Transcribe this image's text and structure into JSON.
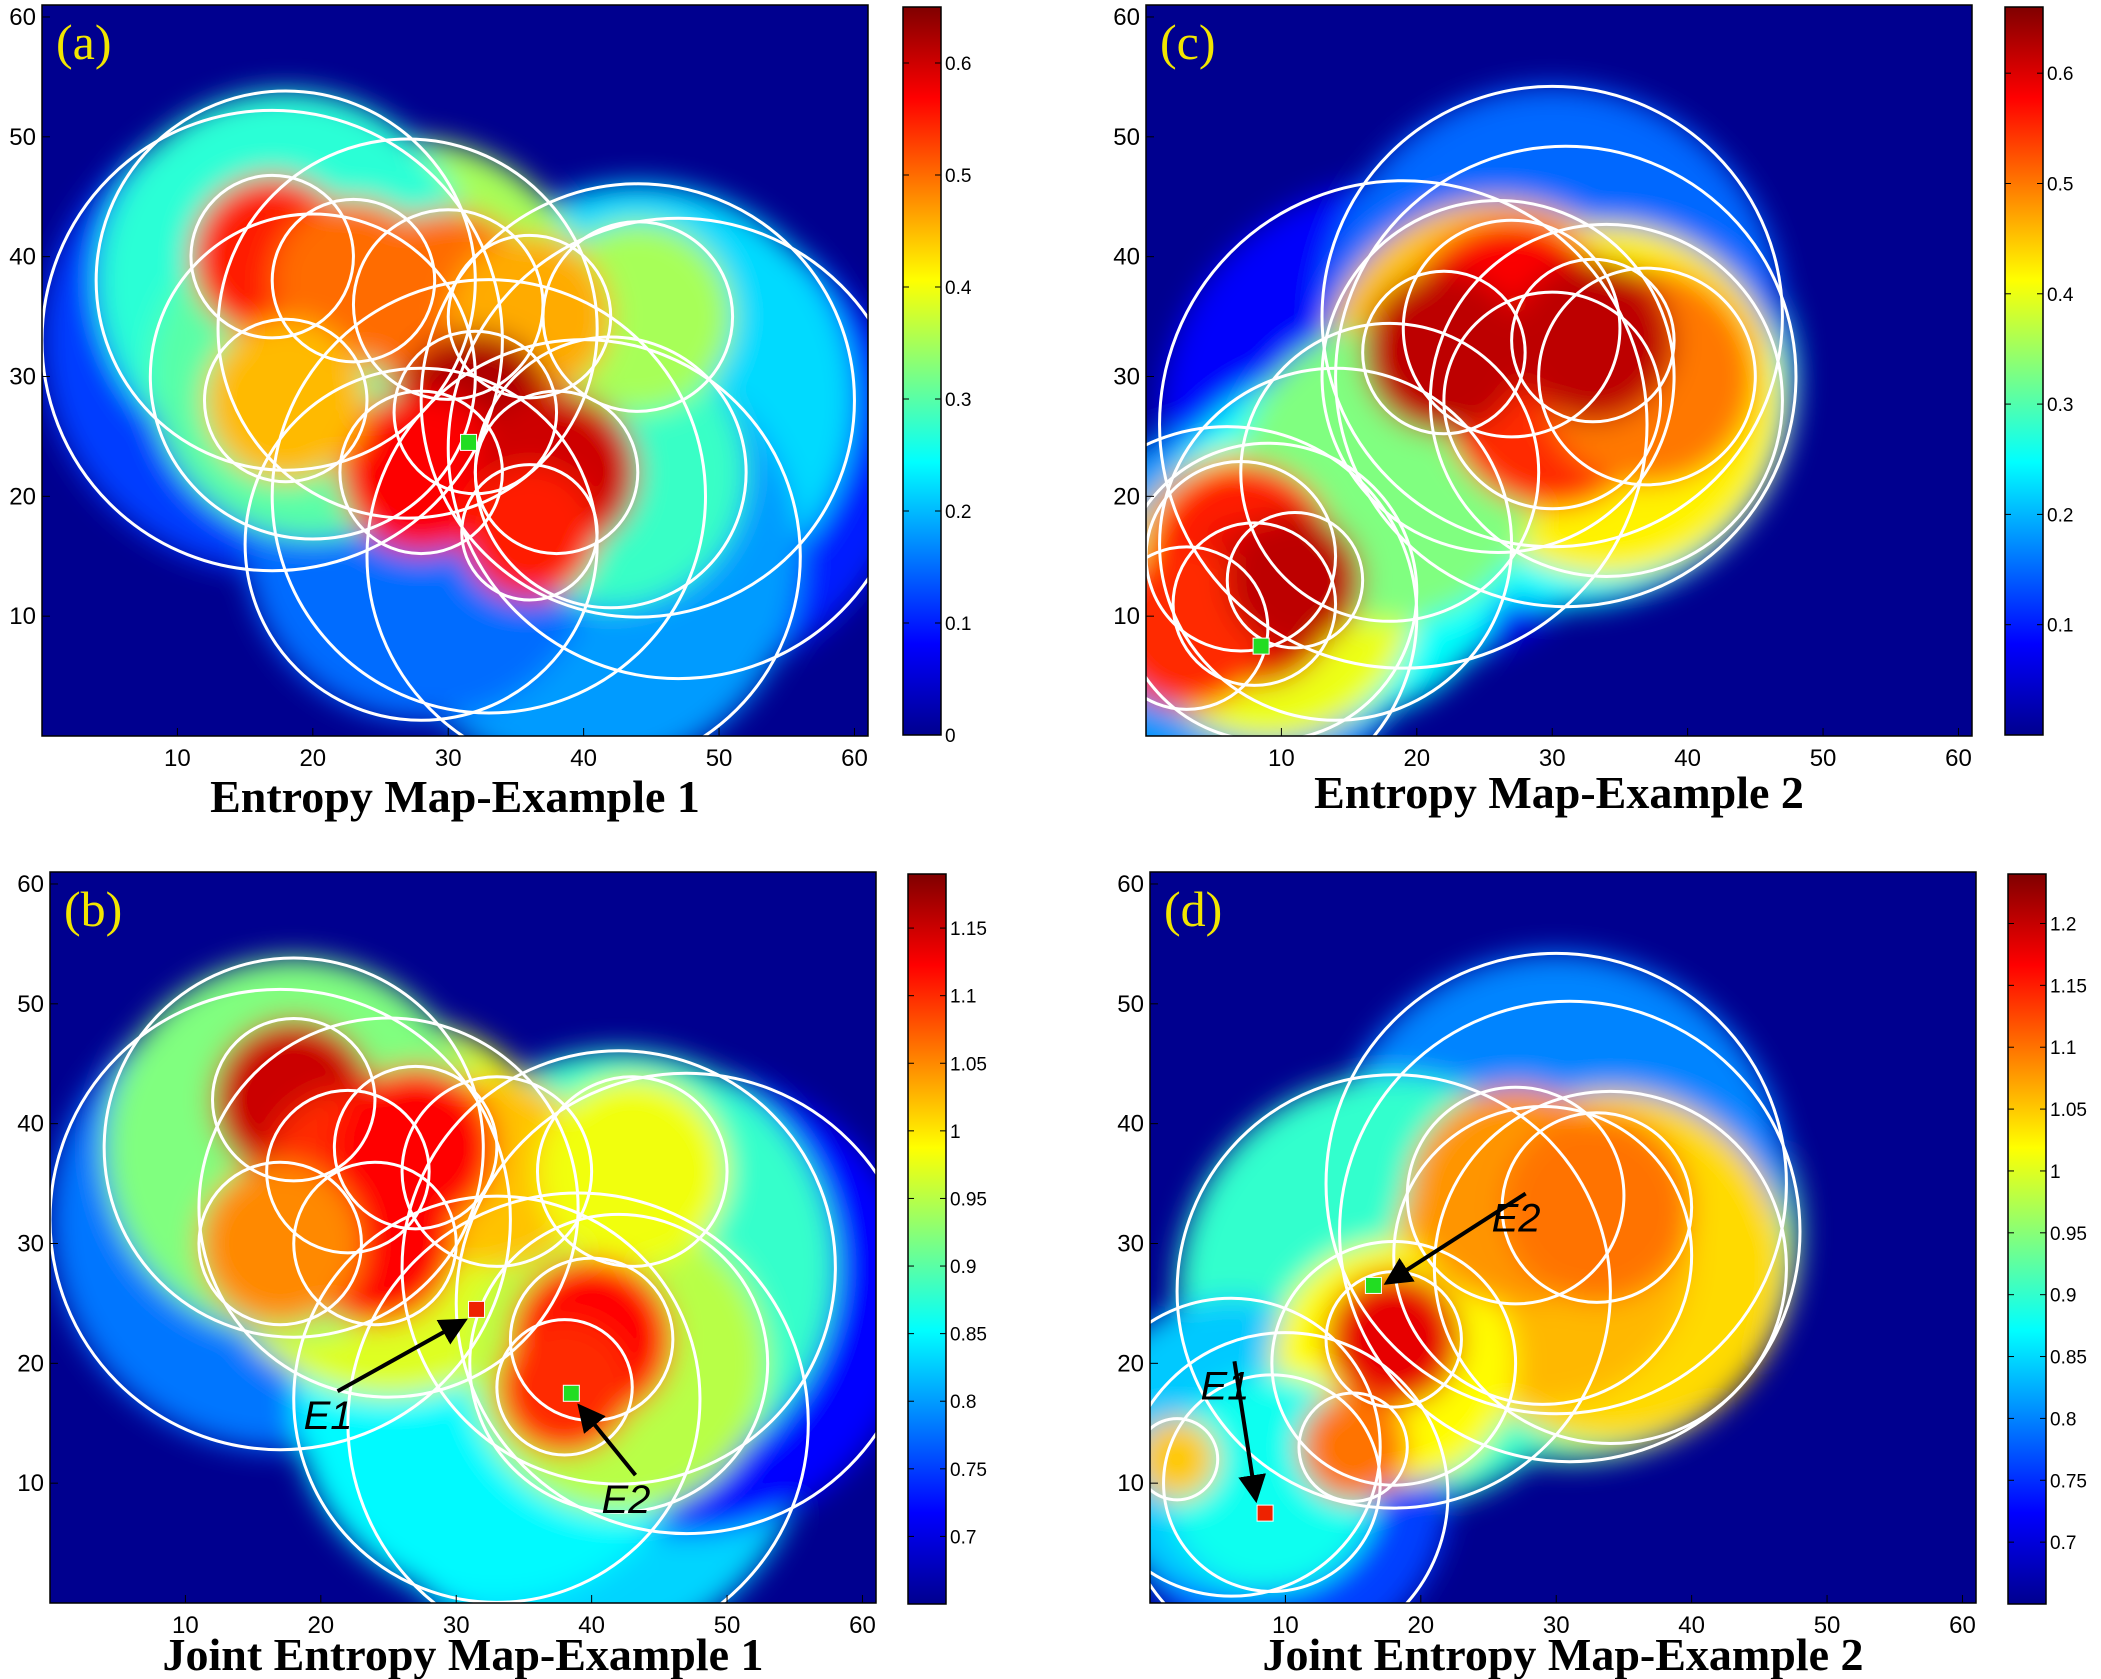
{
  "chart_data": [
    {
      "type": "heatmap",
      "panel_label": "(a)",
      "title": "Entropy Map-Example 1",
      "xlabel": "",
      "ylabel": "",
      "xlim": [
        0,
        61
      ],
      "ylim": [
        0,
        61
      ],
      "xticks": [
        10,
        20,
        30,
        40,
        50,
        60
      ],
      "yticks": [
        10,
        20,
        30,
        40,
        50,
        60
      ],
      "colorbar": {
        "min": 0,
        "max": 0.65,
        "ticks": [
          0,
          0.1,
          0.2,
          0.3,
          0.4,
          0.5,
          0.6
        ],
        "tick_labels": [
          "0",
          "0.1",
          "0.2",
          "0.3",
          "0.4",
          "0.5",
          "0.6"
        ]
      },
      "markers": [
        {
          "x": 31.5,
          "y": 24.5,
          "color": "#22dd22"
        }
      ],
      "annotations": [],
      "circles": [
        {
          "x": 17,
          "y": 40,
          "r": 6,
          "v": 0.55
        },
        {
          "x": 23,
          "y": 38,
          "r": 6,
          "v": 0.5
        },
        {
          "x": 30,
          "y": 36,
          "r": 7,
          "v": 0.5
        },
        {
          "x": 36,
          "y": 35,
          "r": 6,
          "v": 0.46
        },
        {
          "x": 32,
          "y": 27,
          "r": 6,
          "v": 0.62
        },
        {
          "x": 28,
          "y": 22,
          "r": 6,
          "v": 0.57
        },
        {
          "x": 38,
          "y": 22,
          "r": 6,
          "v": 0.6
        },
        {
          "x": 36,
          "y": 17,
          "r": 5,
          "v": 0.55
        },
        {
          "x": 18,
          "y": 28,
          "r": 6,
          "v": 0.45
        },
        {
          "x": 44,
          "y": 35,
          "r": 7,
          "v": 0.35
        },
        {
          "x": 42,
          "y": 22,
          "r": 10,
          "v": 0.28
        },
        {
          "x": 27,
          "y": 34,
          "r": 14,
          "v": 0.35
        },
        {
          "x": 20,
          "y": 30,
          "r": 12,
          "v": 0.3
        },
        {
          "x": 18,
          "y": 38,
          "r": 14,
          "v": 0.27
        },
        {
          "x": 44,
          "y": 28,
          "r": 16,
          "v": 0.22
        },
        {
          "x": 33,
          "y": 20,
          "r": 16,
          "v": 0.2
        },
        {
          "x": 40,
          "y": 15,
          "r": 16,
          "v": 0.18
        },
        {
          "x": 28,
          "y": 16,
          "r": 13,
          "v": 0.15
        },
        {
          "x": 17,
          "y": 33,
          "r": 17,
          "v": 0.12
        },
        {
          "x": 47,
          "y": 24,
          "r": 17,
          "v": 0.1
        }
      ]
    },
    {
      "type": "heatmap",
      "panel_label": "(c)",
      "title": "Entropy Map-Example 2",
      "xlabel": "",
      "ylabel": "",
      "xlim": [
        0,
        61
      ],
      "ylim": [
        0,
        61
      ],
      "xticks": [
        10,
        20,
        30,
        40,
        50,
        60
      ],
      "yticks": [
        10,
        20,
        30,
        40,
        50,
        60
      ],
      "colorbar": {
        "min": 0,
        "max": 0.66,
        "ticks": [
          0.1,
          0.2,
          0.3,
          0.4,
          0.5,
          0.6
        ],
        "tick_labels": [
          "0.1",
          "0.2",
          "0.3",
          "0.4",
          "0.5",
          "0.6"
        ]
      },
      "markers": [
        {
          "x": 8.5,
          "y": 7.5,
          "color": "#22dd22"
        }
      ],
      "annotations": [],
      "circles": [
        {
          "x": 8,
          "y": 11,
          "r": 6,
          "v": 0.6
        },
        {
          "x": 11,
          "y": 13,
          "r": 5,
          "v": 0.62
        },
        {
          "x": 3,
          "y": 9,
          "r": 6,
          "v": 0.55
        },
        {
          "x": 7,
          "y": 15,
          "r": 7,
          "v": 0.56
        },
        {
          "x": 22,
          "y": 32,
          "r": 6,
          "v": 0.62
        },
        {
          "x": 33,
          "y": 33,
          "r": 6,
          "v": 0.62
        },
        {
          "x": 27,
          "y": 34,
          "r": 8,
          "v": 0.58
        },
        {
          "x": 30,
          "y": 28,
          "r": 8,
          "v": 0.55
        },
        {
          "x": 37,
          "y": 30,
          "r": 8,
          "v": 0.5
        },
        {
          "x": 26,
          "y": 30,
          "r": 13,
          "v": 0.45
        },
        {
          "x": 34,
          "y": 28,
          "r": 13,
          "v": 0.42
        },
        {
          "x": 9,
          "y": 12,
          "r": 11,
          "v": 0.4
        },
        {
          "x": 18,
          "y": 22,
          "r": 11,
          "v": 0.33
        },
        {
          "x": 31,
          "y": 30,
          "r": 17,
          "v": 0.25
        },
        {
          "x": 14,
          "y": 16,
          "r": 13,
          "v": 0.25
        },
        {
          "x": 30,
          "y": 35,
          "r": 17,
          "v": 0.15
        },
        {
          "x": 6,
          "y": 10,
          "r": 14,
          "v": 0.18
        },
        {
          "x": 19,
          "y": 26,
          "r": 18,
          "v": 0.08
        }
      ]
    },
    {
      "type": "heatmap",
      "panel_label": "(b)",
      "title": "Joint Entropy Map-Example 1",
      "xlabel": "",
      "ylabel": "",
      "xlim": [
        0,
        61
      ],
      "ylim": [
        0,
        61
      ],
      "xticks": [
        10,
        20,
        30,
        40,
        50,
        60
      ],
      "yticks": [
        10,
        20,
        30,
        40,
        50,
        60
      ],
      "colorbar": {
        "min": 0.65,
        "max": 1.19,
        "ticks": [
          0.7,
          0.75,
          0.8,
          0.85,
          0.9,
          0.95,
          1,
          1.05,
          1.1,
          1.15
        ],
        "tick_labels": [
          "0.7",
          "0.75",
          "0.8",
          "0.85",
          "0.9",
          "0.95",
          "1",
          "1.05",
          "1.1",
          "1.15"
        ]
      },
      "markers": [
        {
          "x": 31.5,
          "y": 24.5,
          "color": "#ee2200"
        },
        {
          "x": 38.5,
          "y": 17.5,
          "color": "#22dd22"
        }
      ],
      "annotations": [
        {
          "text": "E1",
          "tx": 20.5,
          "ty": 14.5,
          "ax": 30.5,
          "ay": 23.5
        },
        {
          "text": "E2",
          "tx": 42.5,
          "ty": 7.5,
          "ax": 39.2,
          "ay": 16.3
        }
      ],
      "circles": [
        {
          "x": 18,
          "y": 42,
          "r": 6,
          "v": 1.15
        },
        {
          "x": 22,
          "y": 36,
          "r": 6,
          "v": 1.1
        },
        {
          "x": 27,
          "y": 38,
          "r": 6,
          "v": 1.12
        },
        {
          "x": 24,
          "y": 30,
          "r": 6,
          "v": 1.12
        },
        {
          "x": 40,
          "y": 22,
          "r": 6,
          "v": 1.12
        },
        {
          "x": 38,
          "y": 18,
          "r": 5,
          "v": 1.1
        },
        {
          "x": 17,
          "y": 30,
          "r": 6,
          "v": 1.05
        },
        {
          "x": 33,
          "y": 36,
          "r": 7,
          "v": 1.02
        },
        {
          "x": 43,
          "y": 36,
          "r": 7,
          "v": 0.98
        },
        {
          "x": 25,
          "y": 33,
          "r": 14,
          "v": 0.97
        },
        {
          "x": 42,
          "y": 20,
          "r": 11,
          "v": 0.95
        },
        {
          "x": 18,
          "y": 38,
          "r": 14,
          "v": 0.92
        },
        {
          "x": 42,
          "y": 28,
          "r": 16,
          "v": 0.88
        },
        {
          "x": 33,
          "y": 17,
          "r": 15,
          "v": 0.85
        },
        {
          "x": 39,
          "y": 15,
          "r": 17,
          "v": 0.83
        },
        {
          "x": 17,
          "y": 32,
          "r": 17,
          "v": 0.78
        },
        {
          "x": 47,
          "y": 25,
          "r": 17,
          "v": 0.72
        }
      ]
    },
    {
      "type": "heatmap",
      "panel_label": "(d)",
      "title": "Joint Entropy Map-Example 2",
      "xlabel": "",
      "ylabel": "",
      "xlim": [
        0,
        61
      ],
      "ylim": [
        0,
        61
      ],
      "xticks": [
        10,
        20,
        30,
        40,
        50,
        60
      ],
      "yticks": [
        10,
        20,
        30,
        40,
        50,
        60
      ],
      "colorbar": {
        "min": 0.65,
        "max": 1.24,
        "ticks": [
          0.7,
          0.75,
          0.8,
          0.85,
          0.9,
          0.95,
          1,
          1.05,
          1.1,
          1.15,
          1.2
        ],
        "tick_labels": [
          "0.7",
          "0.75",
          "0.8",
          "0.85",
          "0.9",
          "0.95",
          "1",
          "1.05",
          "1.1",
          "1.15",
          "1.2"
        ]
      },
      "markers": [
        {
          "x": 8.5,
          "y": 7.5,
          "color": "#ee2200"
        },
        {
          "x": 16.5,
          "y": 26.5,
          "color": "#22dd22"
        }
      ],
      "annotations": [
        {
          "text": "E1",
          "tx": 5.5,
          "ty": 17.0,
          "ax": 7.8,
          "ay": 8.8
        },
        {
          "text": "E2",
          "tx": 27.0,
          "ty": 31.0,
          "ax": 17.6,
          "ay": 26.8
        }
      ],
      "circles": [
        {
          "x": 18,
          "y": 22,
          "r": 5,
          "v": 1.18
        },
        {
          "x": 15,
          "y": 13,
          "r": 4,
          "v": 1.1
        },
        {
          "x": 2,
          "y": 12,
          "r": 3,
          "v": 1.05
        },
        {
          "x": 27,
          "y": 34,
          "r": 8,
          "v": 1.08
        },
        {
          "x": 33,
          "y": 33,
          "r": 7,
          "v": 1.1
        },
        {
          "x": 29,
          "y": 29,
          "r": 11,
          "v": 1.06
        },
        {
          "x": 34,
          "y": 28,
          "r": 13,
          "v": 1.04
        },
        {
          "x": 18,
          "y": 20,
          "r": 9,
          "v": 1.02
        },
        {
          "x": 31,
          "y": 31,
          "r": 17,
          "v": 0.92
        },
        {
          "x": 18,
          "y": 26,
          "r": 16,
          "v": 0.9
        },
        {
          "x": 9,
          "y": 10,
          "r": 8,
          "v": 0.88
        },
        {
          "x": 6,
          "y": 13,
          "r": 11,
          "v": 0.84
        },
        {
          "x": 30,
          "y": 35,
          "r": 17,
          "v": 0.8
        },
        {
          "x": 10,
          "y": 9,
          "r": 12,
          "v": 0.76
        }
      ]
    }
  ]
}
